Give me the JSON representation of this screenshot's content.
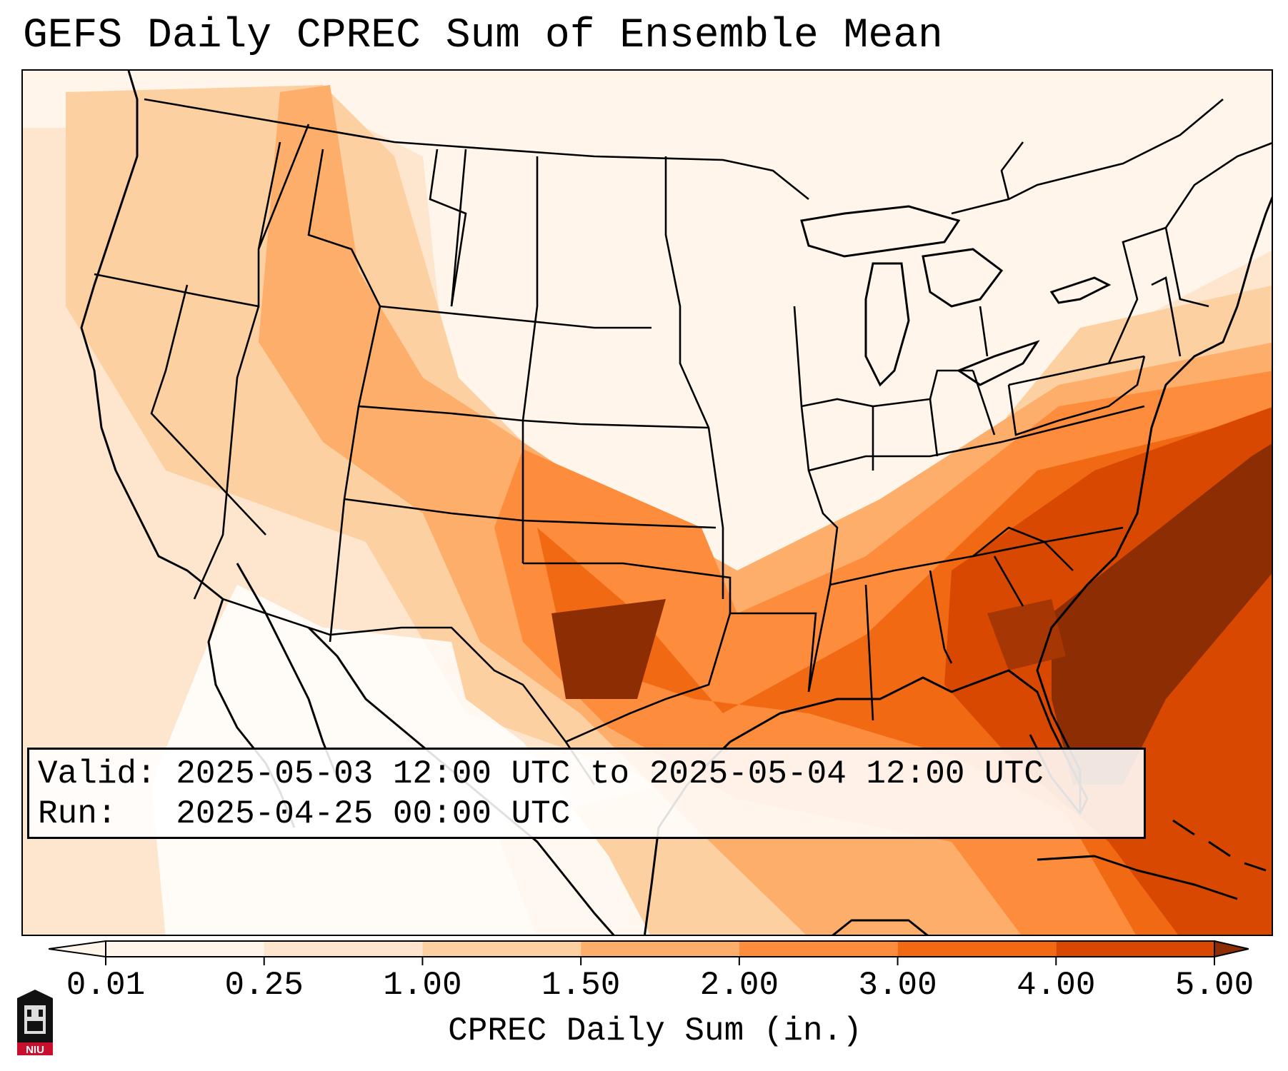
{
  "title": "GEFS Daily CPREC Sum of Ensemble Mean",
  "info": {
    "valid_label": "Valid:",
    "valid_value": "2025-05-03 12:00 UTC to 2025-05-04 12:00 UTC",
    "run_label": "Run:",
    "run_value": "2025-04-25 00:00 UTC"
  },
  "colorbar": {
    "label": "CPREC Daily Sum (in.)",
    "ticks": [
      "0.01",
      "0.25",
      "1.00",
      "1.50",
      "2.00",
      "3.00",
      "4.00",
      "5.00"
    ],
    "colors": [
      "#fff5eb",
      "#fee6ce",
      "#fdd0a2",
      "#fdae6b",
      "#fd8d3c",
      "#f16913",
      "#d94801",
      "#8c2d04"
    ]
  },
  "logo": {
    "text": "NIU",
    "color": "#c8102e"
  }
}
